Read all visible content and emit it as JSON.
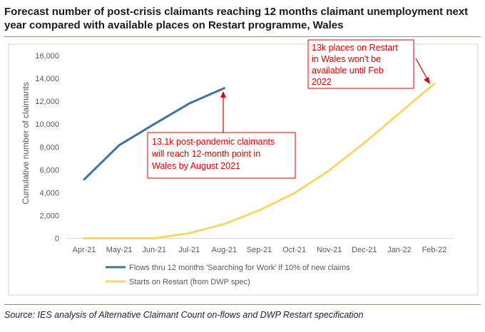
{
  "title_line1": "Forecast number of post-crisis claimants reaching 12 months claimant unemployment next",
  "title_line2": "year compared with available places on Restart programme, Wales",
  "source": "Source: IES analysis of Alternative Claimant Count on-flows and DWP Restart specification",
  "chart_data": {
    "type": "line",
    "title": "Forecast number of post-crisis claimants reaching 12 months claimant unemployment next year compared with available places on Restart programme, Wales",
    "categories": [
      "Apr-21",
      "May-21",
      "Jun-21",
      "Jul-21",
      "Aug-21",
      "Sep-21",
      "Oct-21",
      "Nov-21",
      "Dec-21",
      "Jan-22",
      "Feb-22"
    ],
    "ylabel": "Cumulative number of claimants",
    "xlabel": "",
    "ylim": [
      0,
      16000
    ],
    "yticks": [
      0,
      2000,
      4000,
      6000,
      8000,
      10000,
      12000,
      14000,
      16000
    ],
    "ytick_labels": [
      "0",
      "2,000",
      "4,000",
      "6,000",
      "8,000",
      "10,000",
      "12,000",
      "14,000",
      "16,000"
    ],
    "grid": false,
    "legend_position": "bottom",
    "series": [
      {
        "name": "Flows thru 12 months 'Searching for Work' if 10% of new claims",
        "color": "#3e73a0",
        "values": [
          5150,
          8150,
          10000,
          11800,
          13150,
          null,
          null,
          null,
          null,
          null,
          null
        ]
      },
      {
        "name": "Starts on Restart (from DWP spec)",
        "color": "#f8d764",
        "values": [
          0,
          0,
          0,
          450,
          1250,
          2450,
          3950,
          5950,
          8350,
          10950,
          13550
        ]
      }
    ],
    "annotations": [
      {
        "lines": [
          "13.1k post-pandemic claimants",
          "will reach 12-month point in",
          "Wales by August 2021"
        ],
        "color": "#e00000"
      },
      {
        "lines": [
          "13k places on Restart",
          "in Wales won't be",
          "available until Feb",
          "2022"
        ],
        "color": "#e00000"
      }
    ]
  }
}
